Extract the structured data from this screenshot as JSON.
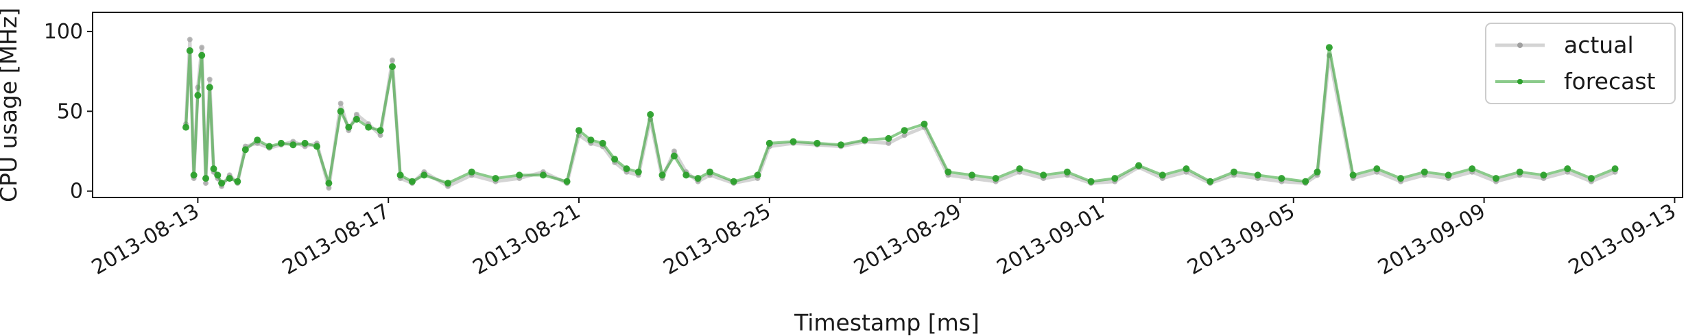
{
  "chart_data": {
    "type": "line",
    "title": "",
    "xlabel": "Timestamp [ms]",
    "ylabel": "CPU usage [MHz]",
    "ylim": [
      -4,
      112
    ],
    "xlim": [
      "2013-08-10T19:00",
      "2013-09-13T04:00"
    ],
    "yticks": [
      0,
      50,
      100
    ],
    "xticks": [
      "2013-08-13",
      "2013-08-17",
      "2013-08-21",
      "2013-08-25",
      "2013-08-29",
      "2013-09-01",
      "2013-09-05",
      "2013-09-09",
      "2013-09-13"
    ],
    "grid": false,
    "legend_position": "top-right",
    "series": [
      {
        "name": "actual",
        "color": "#a0a0a0",
        "x": [
          "2013-08-12T18:00",
          "2013-08-12T20:00",
          "2013-08-12T22:00",
          "2013-08-13T00:00",
          "2013-08-13T02:00",
          "2013-08-13T04:00",
          "2013-08-13T06:00",
          "2013-08-13T08:00",
          "2013-08-13T10:00",
          "2013-08-13T12:00",
          "2013-08-13T16:00",
          "2013-08-13T20:00",
          "2013-08-14T00:00",
          "2013-08-14T06:00",
          "2013-08-14T12:00",
          "2013-08-14T18:00",
          "2013-08-15T00:00",
          "2013-08-15T06:00",
          "2013-08-15T12:00",
          "2013-08-15T18:00",
          "2013-08-16T00:00",
          "2013-08-16T04:00",
          "2013-08-16T08:00",
          "2013-08-16T14:00",
          "2013-08-16T20:00",
          "2013-08-17T02:00",
          "2013-08-17T06:00",
          "2013-08-17T12:00",
          "2013-08-17T18:00",
          "2013-08-18T06:00",
          "2013-08-18T18:00",
          "2013-08-19T06:00",
          "2013-08-19T18:00",
          "2013-08-20T06:00",
          "2013-08-20T18:00",
          "2013-08-21T00:00",
          "2013-08-21T06:00",
          "2013-08-21T12:00",
          "2013-08-21T18:00",
          "2013-08-22T00:00",
          "2013-08-22T06:00",
          "2013-08-22T12:00",
          "2013-08-22T18:00",
          "2013-08-23T00:00",
          "2013-08-23T06:00",
          "2013-08-23T12:00",
          "2013-08-23T18:00",
          "2013-08-24T06:00",
          "2013-08-24T18:00",
          "2013-08-25T00:00",
          "2013-08-25T12:00",
          "2013-08-26T00:00",
          "2013-08-26T12:00",
          "2013-08-27T00:00",
          "2013-08-27T12:00",
          "2013-08-27T20:00",
          "2013-08-28T06:00",
          "2013-08-28T18:00",
          "2013-08-29T06:00",
          "2013-08-29T18:00",
          "2013-08-30T06:00",
          "2013-08-30T18:00",
          "2013-08-31T06:00",
          "2013-08-31T18:00",
          "2013-09-01T06:00",
          "2013-09-01T18:00",
          "2013-09-02T06:00",
          "2013-09-02T18:00",
          "2013-09-03T06:00",
          "2013-09-03T18:00",
          "2013-09-04T06:00",
          "2013-09-04T18:00",
          "2013-09-05T06:00",
          "2013-09-05T12:00",
          "2013-09-05T18:00",
          "2013-09-06T06:00",
          "2013-09-06T18:00",
          "2013-09-07T06:00",
          "2013-09-07T18:00",
          "2013-09-08T06:00",
          "2013-09-08T18:00",
          "2013-09-09T06:00",
          "2013-09-09T18:00",
          "2013-09-10T06:00",
          "2013-09-10T18:00",
          "2013-09-11T06:00",
          "2013-09-11T18:00"
        ],
        "values": [
          42,
          95,
          8,
          65,
          90,
          5,
          70,
          12,
          8,
          3,
          10,
          5,
          28,
          30,
          27,
          29,
          31,
          28,
          30,
          2,
          55,
          38,
          48,
          42,
          35,
          82,
          8,
          5,
          12,
          3,
          10,
          6,
          8,
          12,
          5,
          35,
          30,
          28,
          18,
          12,
          10,
          45,
          8,
          25,
          12,
          6,
          10,
          5,
          8,
          28,
          30,
          29,
          28,
          31,
          30,
          35,
          40,
          10,
          8,
          6,
          12,
          8,
          10,
          5,
          6,
          15,
          8,
          12,
          5,
          10,
          8,
          6,
          5,
          10,
          85,
          8,
          12,
          6,
          10,
          8,
          12,
          6,
          10,
          8,
          12,
          6,
          12
        ]
      },
      {
        "name": "forecast",
        "color": "#2ca02c",
        "x": [
          "2013-08-12T18:00",
          "2013-08-12T20:00",
          "2013-08-12T22:00",
          "2013-08-13T00:00",
          "2013-08-13T02:00",
          "2013-08-13T04:00",
          "2013-08-13T06:00",
          "2013-08-13T08:00",
          "2013-08-13T10:00",
          "2013-08-13T12:00",
          "2013-08-13T16:00",
          "2013-08-13T20:00",
          "2013-08-14T00:00",
          "2013-08-14T06:00",
          "2013-08-14T12:00",
          "2013-08-14T18:00",
          "2013-08-15T00:00",
          "2013-08-15T06:00",
          "2013-08-15T12:00",
          "2013-08-15T18:00",
          "2013-08-16T00:00",
          "2013-08-16T04:00",
          "2013-08-16T08:00",
          "2013-08-16T14:00",
          "2013-08-16T20:00",
          "2013-08-17T02:00",
          "2013-08-17T06:00",
          "2013-08-17T12:00",
          "2013-08-17T18:00",
          "2013-08-18T06:00",
          "2013-08-18T18:00",
          "2013-08-19T06:00",
          "2013-08-19T18:00",
          "2013-08-20T06:00",
          "2013-08-20T18:00",
          "2013-08-21T00:00",
          "2013-08-21T06:00",
          "2013-08-21T12:00",
          "2013-08-21T18:00",
          "2013-08-22T00:00",
          "2013-08-22T06:00",
          "2013-08-22T12:00",
          "2013-08-22T18:00",
          "2013-08-23T00:00",
          "2013-08-23T06:00",
          "2013-08-23T12:00",
          "2013-08-23T18:00",
          "2013-08-24T06:00",
          "2013-08-24T18:00",
          "2013-08-25T00:00",
          "2013-08-25T12:00",
          "2013-08-26T00:00",
          "2013-08-26T12:00",
          "2013-08-27T00:00",
          "2013-08-27T12:00",
          "2013-08-27T20:00",
          "2013-08-28T06:00",
          "2013-08-28T18:00",
          "2013-08-29T06:00",
          "2013-08-29T18:00",
          "2013-08-30T06:00",
          "2013-08-30T18:00",
          "2013-08-31T06:00",
          "2013-08-31T18:00",
          "2013-09-01T06:00",
          "2013-09-01T18:00",
          "2013-09-02T06:00",
          "2013-09-02T18:00",
          "2013-09-03T06:00",
          "2013-09-03T18:00",
          "2013-09-04T06:00",
          "2013-09-04T18:00",
          "2013-09-05T06:00",
          "2013-09-05T12:00",
          "2013-09-05T18:00",
          "2013-09-06T06:00",
          "2013-09-06T18:00",
          "2013-09-07T06:00",
          "2013-09-07T18:00",
          "2013-09-08T06:00",
          "2013-09-08T18:00",
          "2013-09-09T06:00",
          "2013-09-09T18:00",
          "2013-09-10T06:00",
          "2013-09-10T18:00",
          "2013-09-11T06:00",
          "2013-09-11T18:00"
        ],
        "values": [
          40,
          88,
          10,
          60,
          85,
          8,
          65,
          14,
          10,
          5,
          8,
          6,
          26,
          32,
          28,
          30,
          29,
          30,
          28,
          5,
          50,
          40,
          45,
          40,
          38,
          78,
          10,
          6,
          10,
          5,
          12,
          8,
          10,
          10,
          6,
          38,
          32,
          30,
          20,
          14,
          12,
          48,
          10,
          22,
          10,
          8,
          12,
          6,
          10,
          30,
          31,
          30,
          29,
          32,
          33,
          38,
          42,
          12,
          10,
          8,
          14,
          10,
          12,
          6,
          8,
          16,
          10,
          14,
          6,
          12,
          10,
          8,
          6,
          12,
          90,
          10,
          14,
          8,
          12,
          10,
          14,
          8,
          12,
          10,
          14,
          8,
          14
        ]
      }
    ]
  }
}
